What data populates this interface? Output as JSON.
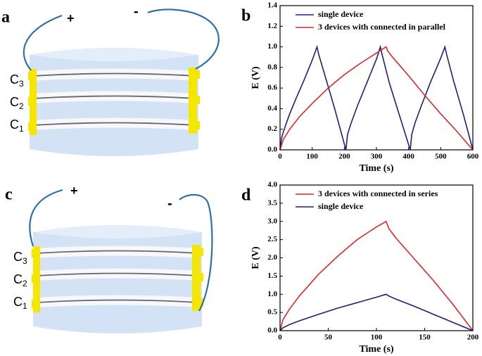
{
  "diagrams": [
    {
      "panel_label": "a",
      "plus": "+",
      "minus": "-",
      "capacitors": [
        {
          "main": "C",
          "sub": "3"
        },
        {
          "main": "C",
          "sub": "2"
        },
        {
          "main": "C",
          "sub": "1"
        }
      ]
    },
    {
      "panel_label": "c",
      "plus": "+",
      "minus": "-",
      "capacitors": [
        {
          "main": "C",
          "sub": "3"
        },
        {
          "main": "C",
          "sub": "2"
        },
        {
          "main": "C",
          "sub": "1"
        }
      ]
    }
  ],
  "chart_data": [
    {
      "type": "line",
      "panel_label": "b",
      "x_label": "Time (s)",
      "y_label": "E (V)",
      "xlim": [
        0,
        600
      ],
      "xticks": [
        0,
        100,
        200,
        300,
        400,
        500,
        600
      ],
      "ylim": [
        0,
        1.4
      ],
      "yticks": [
        {
          "value": 0,
          "label": "0.0"
        },
        0.2,
        0.4,
        0.6,
        0.8,
        {
          "value": 1,
          "label": "1.0"
        },
        1.2,
        1.4
      ],
      "legend": "upper left",
      "series": [
        {
          "name": "single device",
          "color": "#1f1f7a",
          "x": [
            0,
            5,
            15,
            30,
            50,
            75,
            100,
            115,
            120,
            140,
            170,
            205,
            210,
            220,
            240,
            270,
            300,
            312,
            318,
            340,
            370,
            405,
            410,
            420,
            440,
            470,
            500,
            513,
            519,
            540,
            570,
            600
          ],
          "values": [
            0,
            0.12,
            0.22,
            0.35,
            0.5,
            0.68,
            0.87,
            1.0,
            0.93,
            0.72,
            0.4,
            0,
            0.15,
            0.25,
            0.42,
            0.65,
            0.88,
            1.0,
            0.92,
            0.65,
            0.35,
            0,
            0.15,
            0.26,
            0.43,
            0.67,
            0.89,
            1.0,
            0.92,
            0.67,
            0.35,
            0
          ]
        },
        {
          "name": "3 devices with connected in parallel",
          "color": "#e0262b",
          "x": [
            0,
            10,
            30,
            60,
            100,
            150,
            200,
            250,
            300,
            330,
            335,
            350,
            400,
            450,
            500,
            550,
            600
          ],
          "values": [
            0,
            0.1,
            0.2,
            0.32,
            0.45,
            0.6,
            0.73,
            0.84,
            0.94,
            1.0,
            0.96,
            0.9,
            0.72,
            0.53,
            0.35,
            0.18,
            0
          ]
        }
      ]
    },
    {
      "type": "line",
      "panel_label": "d",
      "x_label": "Time (s)",
      "y_label": "E (V)",
      "xlim": [
        0,
        200
      ],
      "xticks": [
        0,
        50,
        100,
        150,
        200
      ],
      "ylim": [
        0,
        4
      ],
      "yticks": [
        {
          "value": 0,
          "label": "0.0"
        },
        0.5,
        {
          "value": 1,
          "label": "1.0"
        },
        1.5,
        {
          "value": 2,
          "label": "2.0"
        },
        2.5,
        {
          "value": 3,
          "label": "3.0"
        },
        3.5,
        {
          "value": 4,
          "label": "4.0"
        }
      ],
      "legend": "upper left",
      "series": [
        {
          "name": "3 devices with connected in series",
          "color": "#e0262b",
          "x": [
            0,
            3,
            10,
            20,
            40,
            60,
            80,
            100,
            110,
            113,
            120,
            140,
            160,
            180,
            200
          ],
          "values": [
            0,
            0.3,
            0.6,
            0.95,
            1.55,
            2.05,
            2.5,
            2.85,
            3.0,
            2.8,
            2.55,
            1.95,
            1.35,
            0.7,
            0
          ]
        },
        {
          "name": "single device",
          "color": "#1f1f7a",
          "x": [
            0,
            3,
            10,
            20,
            40,
            60,
            80,
            100,
            110,
            113,
            120,
            140,
            160,
            180,
            200
          ],
          "values": [
            0,
            0.08,
            0.17,
            0.27,
            0.45,
            0.62,
            0.77,
            0.92,
            1.0,
            0.95,
            0.87,
            0.66,
            0.44,
            0.22,
            0
          ]
        }
      ]
    }
  ]
}
